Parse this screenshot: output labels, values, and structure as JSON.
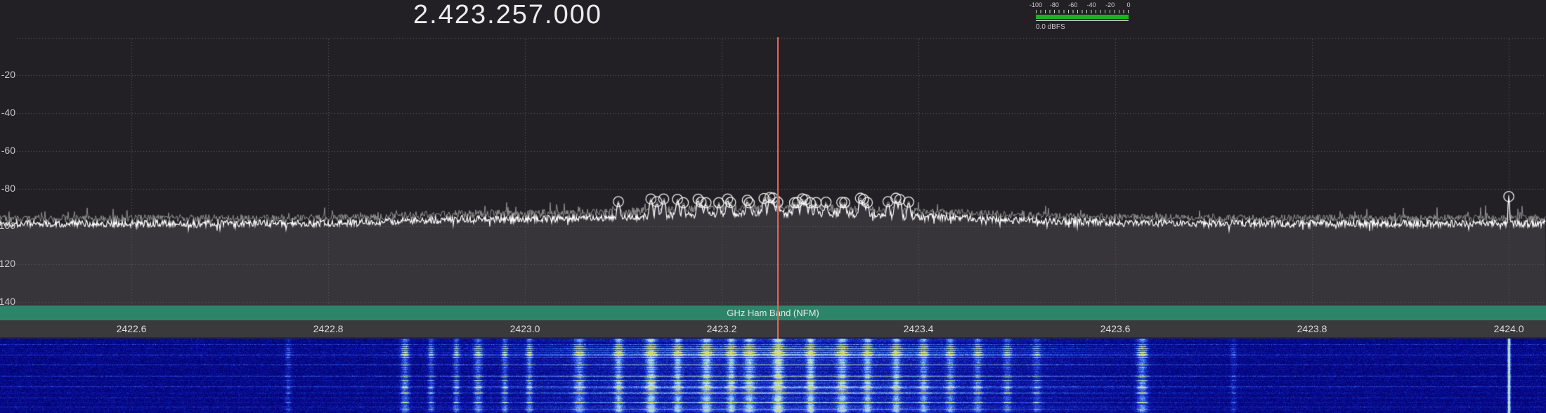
{
  "header": {
    "frequency_display": "2.423.257.000"
  },
  "meter": {
    "tick_labels": [
      "-100",
      "-80",
      "-60",
      "-40",
      "-20",
      "0"
    ],
    "readout": "0.0 dBFS",
    "bar_color": "#1db122"
  },
  "band_plan": {
    "label": "GHz Ham Band (NFM)",
    "color": "#2d8569"
  },
  "spectrum": {
    "db_axis": {
      "top_db": 0,
      "bottom_db": -140,
      "labels": [
        {
          "text": "-20",
          "db": -20
        },
        {
          "text": "-40",
          "db": -40
        },
        {
          "text": "-60",
          "db": -60
        },
        {
          "text": "-80",
          "db": -80
        },
        {
          "text": "-100",
          "db": -100
        },
        {
          "text": "-120",
          "db": -120
        },
        {
          "text": "-140",
          "db": -140
        }
      ]
    },
    "freq_axis": {
      "start_mhz": 2422.4664,
      "end_mhz": 2424.0378,
      "labels": [
        {
          "text": "2422.6",
          "mhz": 2422.6
        },
        {
          "text": "2422.8",
          "mhz": 2422.8
        },
        {
          "text": "2423.0",
          "mhz": 2423.0
        },
        {
          "text": "2423.2",
          "mhz": 2423.2
        },
        {
          "text": "2423.4",
          "mhz": 2423.4
        },
        {
          "text": "2423.6",
          "mhz": 2423.6
        },
        {
          "text": "2423.8",
          "mhz": 2423.8
        },
        {
          "text": "2424.0",
          "mhz": 2424.0
        }
      ]
    },
    "tuned_freq_mhz": 2423.257,
    "noise_floor_db": -98.5,
    "bumps": [
      {
        "center_mhz": 2423.26,
        "sigma_mhz": 0.164,
        "amp_db": 5.5
      },
      {
        "center_mhz": 2422.94,
        "sigma_mhz": 0.065,
        "amp_db": 1.6
      }
    ],
    "peaks": [
      {
        "mhz": 2423.095,
        "db": -88.0
      },
      {
        "mhz": 2423.128,
        "db": -86.6
      },
      {
        "mhz": 2423.134,
        "db": -88.0
      },
      {
        "mhz": 2423.141,
        "db": -86.6
      },
      {
        "mhz": 2423.155,
        "db": -86.8
      },
      {
        "mhz": 2423.161,
        "db": -88.6
      },
      {
        "mhz": 2423.176,
        "db": -86.7
      },
      {
        "mhz": 2423.179,
        "db": -88.3
      },
      {
        "mhz": 2423.184,
        "db": -88.6
      },
      {
        "mhz": 2423.197,
        "db": -88.6
      },
      {
        "mhz": 2423.206,
        "db": -86.6
      },
      {
        "mhz": 2423.209,
        "db": -88.4
      },
      {
        "mhz": 2423.226,
        "db": -87.3
      },
      {
        "mhz": 2423.228,
        "db": -88.6
      },
      {
        "mhz": 2423.243,
        "db": -86.3
      },
      {
        "mhz": 2423.249,
        "db": -85.8
      },
      {
        "mhz": 2423.252,
        "db": -86.1
      },
      {
        "mhz": 2423.257,
        "db": -88.3
      },
      {
        "mhz": 2423.274,
        "db": -88.6
      },
      {
        "mhz": 2423.277,
        "db": -88.4
      },
      {
        "mhz": 2423.282,
        "db": -86.5
      },
      {
        "mhz": 2423.285,
        "db": -87.0
      },
      {
        "mhz": 2423.29,
        "db": -88.6
      },
      {
        "mhz": 2423.296,
        "db": -88.5
      },
      {
        "mhz": 2423.306,
        "db": -88.3
      },
      {
        "mhz": 2423.322,
        "db": -88.4
      },
      {
        "mhz": 2423.325,
        "db": -88.5
      },
      {
        "mhz": 2423.341,
        "db": -86.2
      },
      {
        "mhz": 2423.344,
        "db": -86.8
      },
      {
        "mhz": 2423.348,
        "db": -88.5
      },
      {
        "mhz": 2423.369,
        "db": -88.0
      },
      {
        "mhz": 2423.377,
        "db": -86.2
      },
      {
        "mhz": 2423.381,
        "db": -86.9
      },
      {
        "mhz": 2423.39,
        "db": -88.2
      },
      {
        "mhz": 2424.0,
        "db": -85.3,
        "k": 3.0
      }
    ],
    "colors": {
      "background": "#222024",
      "fill": "#37343a",
      "grid": "#606060",
      "trace": "#ffffff",
      "max_hold": "#8f8f8f",
      "tuning_line": "#e8635a"
    }
  },
  "waterfall": {
    "envelope": {
      "center_mhz": 2423.26,
      "sigma_mhz": 0.19,
      "amp": 0.34
    },
    "streaks": [
      {
        "mhz": 2422.759,
        "w": 3,
        "amp": 0.22
      },
      {
        "mhz": 2422.878,
        "w": 4,
        "amp": 0.5
      },
      {
        "mhz": 2422.904,
        "w": 3,
        "amp": 0.34
      },
      {
        "mhz": 2422.93,
        "w": 3,
        "amp": 0.4
      },
      {
        "mhz": 2422.952,
        "w": 4,
        "amp": 0.45
      },
      {
        "mhz": 2422.979,
        "w": 3,
        "amp": 0.4
      },
      {
        "mhz": 2423.004,
        "w": 3,
        "amp": 0.45
      },
      {
        "mhz": 2423.055,
        "w": 5,
        "amp": 0.5
      },
      {
        "mhz": 2423.095,
        "w": 4,
        "amp": 0.6
      },
      {
        "mhz": 2423.128,
        "w": 5,
        "amp": 0.7
      },
      {
        "mhz": 2423.155,
        "w": 4,
        "amp": 0.6
      },
      {
        "mhz": 2423.184,
        "w": 5,
        "amp": 0.65
      },
      {
        "mhz": 2423.209,
        "w": 4,
        "amp": 0.6
      },
      {
        "mhz": 2423.228,
        "w": 5,
        "amp": 0.6
      },
      {
        "mhz": 2423.257,
        "w": 5,
        "amp": 0.8
      },
      {
        "mhz": 2423.29,
        "w": 4,
        "amp": 0.7
      },
      {
        "mhz": 2423.322,
        "w": 5,
        "amp": 0.6
      },
      {
        "mhz": 2423.348,
        "w": 4,
        "amp": 0.6
      },
      {
        "mhz": 2423.377,
        "w": 4,
        "amp": 0.6
      },
      {
        "mhz": 2423.405,
        "w": 4,
        "amp": 0.5
      },
      {
        "mhz": 2423.432,
        "w": 4,
        "amp": 0.45
      },
      {
        "mhz": 2423.46,
        "w": 4,
        "amp": 0.4
      },
      {
        "mhz": 2423.49,
        "w": 4,
        "amp": 0.34
      },
      {
        "mhz": 2423.52,
        "w": 4,
        "amp": 0.28
      },
      {
        "mhz": 2423.627,
        "w": 5,
        "amp": 0.55
      },
      {
        "mhz": 2423.72,
        "w": 3,
        "amp": 0.18
      },
      {
        "mhz": 2424.0,
        "w": 1.5,
        "amp": 0.95,
        "solid": true
      }
    ],
    "line_rows": [
      8,
      23,
      37,
      53,
      68,
      84,
      97
    ]
  }
}
